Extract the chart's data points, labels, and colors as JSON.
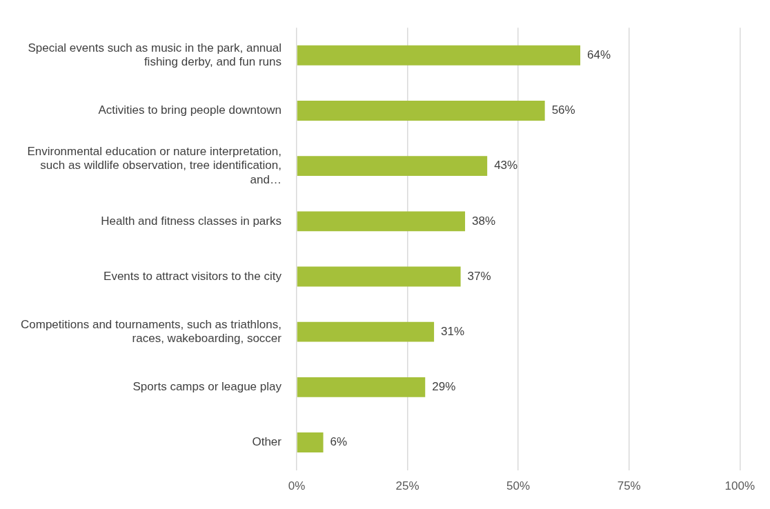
{
  "chart_data": {
    "type": "bar",
    "orientation": "horizontal",
    "categories": [
      "Special events such as music in the park, annual fishing derby, and fun runs",
      "Activities to bring people downtown",
      "Environmental education or nature interpretation, such as wildlife observation, tree identification, and…",
      "Health and fitness classes in parks",
      "Events to attract visitors to the city",
      "Competitions and tournaments, such as triathlons, races, wakeboarding, soccer",
      "Sports camps or league play",
      "Other"
    ],
    "values": [
      64,
      56,
      43,
      38,
      37,
      31,
      29,
      6
    ],
    "value_labels": [
      "64%",
      "56%",
      "43%",
      "38%",
      "37%",
      "31%",
      "29%",
      "6%"
    ],
    "color": "#a5c03a",
    "xlim": [
      0,
      100
    ],
    "xticks": [
      {
        "value": 0,
        "label": "0%"
      },
      {
        "value": 25,
        "label": "25%"
      },
      {
        "value": 50,
        "label": "50%"
      },
      {
        "value": 75,
        "label": "75%"
      },
      {
        "value": 100,
        "label": "100%"
      }
    ],
    "grid": "x",
    "legend": false
  }
}
